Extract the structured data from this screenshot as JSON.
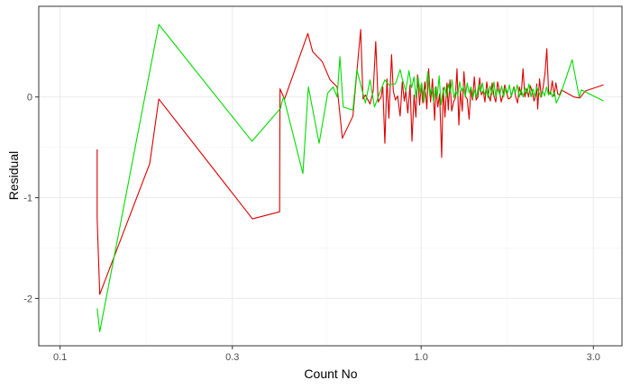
{
  "chart_data": {
    "type": "line",
    "title": "",
    "xlabel": "Count No",
    "ylabel": "Residual",
    "x_scale": "log10",
    "xlim": [
      0.0873,
      3.6
    ],
    "ylim": [
      -2.47,
      0.9
    ],
    "x_ticks": [
      {
        "value": 0.1,
        "label": "0.1"
      },
      {
        "value": 0.3,
        "label": "0.3"
      },
      {
        "value": 1.0,
        "label": "1.0"
      },
      {
        "value": 3.0,
        "label": "3.0"
      }
    ],
    "y_ticks": [
      {
        "value": -2,
        "label": "-2"
      },
      {
        "value": -1,
        "label": "-1"
      },
      {
        "value": 0,
        "label": "0"
      }
    ],
    "grid": true,
    "series": [
      {
        "name": "red",
        "color": "#dd0000",
        "points": [
          [
            0.1267,
            -0.52
          ],
          [
            0.1267,
            -1.21
          ],
          [
            0.1288,
            -1.96
          ],
          [
            0.1772,
            -0.66
          ],
          [
            0.1877,
            -0.02
          ],
          [
            0.3411,
            -1.21
          ],
          [
            0.4056,
            -1.14
          ],
          [
            0.4066,
            0.08
          ],
          [
            0.4185,
            -0.02
          ],
          [
            0.4856,
            0.63
          ],
          [
            0.5007,
            0.45
          ],
          [
            0.5324,
            0.35
          ],
          [
            0.5595,
            0.17
          ],
          [
            0.5852,
            0.1
          ],
          [
            0.6051,
            -0.41
          ],
          [
            0.6473,
            -0.19
          ],
          [
            0.6801,
            0.67
          ],
          [
            0.6904,
            -0.02
          ],
          [
            0.7009,
            0.02
          ],
          [
            0.722,
            -0.07
          ],
          [
            0.7368,
            0.06
          ],
          [
            0.7487,
            0.55
          ],
          [
            0.7603,
            -0.05
          ],
          [
            0.7747,
            0.0
          ],
          [
            0.7832,
            0.1
          ],
          [
            0.7935,
            -0.46
          ],
          [
            0.8042,
            0.18
          ],
          [
            0.8141,
            -0.21
          ],
          [
            0.8282,
            0.42
          ],
          [
            0.8373,
            0.06
          ],
          [
            0.8487,
            -0.03
          ],
          [
            0.8607,
            0.01
          ],
          [
            0.8747,
            -0.19
          ],
          [
            0.8867,
            0.15
          ],
          [
            0.8984,
            -0.04
          ],
          [
            0.9067,
            0.06
          ],
          [
            0.9184,
            -0.16
          ],
          [
            0.932,
            0.12
          ],
          [
            0.9434,
            -0.44
          ],
          [
            0.9561,
            0.02
          ],
          [
            0.9673,
            -0.2
          ],
          [
            0.977,
            0.22
          ],
          [
            0.9905,
            -0.08
          ],
          [
            1.0,
            0.12
          ],
          [
            1.011,
            -0.06
          ],
          [
            1.024,
            0.15
          ],
          [
            1.037,
            -0.12
          ],
          [
            1.049,
            0.28
          ],
          [
            1.062,
            -0.05
          ],
          [
            1.075,
            0.18
          ],
          [
            1.09,
            -0.23
          ],
          [
            1.1,
            0.1
          ],
          [
            1.112,
            -0.1
          ],
          [
            1.125,
            0.03
          ],
          [
            1.14,
            -0.6
          ],
          [
            1.151,
            0.09
          ],
          [
            1.164,
            -0.2
          ],
          [
            1.179,
            0.14
          ],
          [
            1.189,
            -0.13
          ],
          [
            1.202,
            0.17
          ],
          [
            1.215,
            -0.14
          ],
          [
            1.23,
            -0.05
          ],
          [
            1.244,
            -0.01
          ],
          [
            1.257,
            0.28
          ],
          [
            1.272,
            -0.28
          ],
          [
            1.285,
            0.06
          ],
          [
            1.3,
            -0.14
          ],
          [
            1.314,
            0.25
          ],
          [
            1.329,
            0.0
          ],
          [
            1.342,
            -0.02
          ],
          [
            1.358,
            -0.22
          ],
          [
            1.373,
            0.07
          ],
          [
            1.388,
            -0.03
          ],
          [
            1.404,
            0.2
          ],
          [
            1.42,
            -0.03
          ],
          [
            1.436,
            0.0
          ],
          [
            1.452,
            0.19
          ],
          [
            1.469,
            0.02
          ],
          [
            1.486,
            0.06
          ],
          [
            1.502,
            -0.05
          ],
          [
            1.52,
            0.15
          ],
          [
            1.537,
            0.02
          ],
          [
            1.555,
            -0.04
          ],
          [
            1.573,
            0.14
          ],
          [
            1.591,
            0.01
          ],
          [
            1.61,
            -0.05
          ],
          [
            1.628,
            0.15
          ],
          [
            1.647,
            0.07
          ],
          [
            1.666,
            -0.05
          ],
          [
            1.686,
            0.02
          ],
          [
            1.705,
            0.12
          ],
          [
            1.725,
            0.04
          ],
          [
            1.745,
            -0.02
          ],
          [
            1.765,
            -0.01
          ],
          [
            1.786,
            0.04
          ],
          [
            1.807,
            0.1
          ],
          [
            1.828,
            0.0
          ],
          [
            1.85,
            -0.06
          ],
          [
            1.871,
            0.1
          ],
          [
            1.893,
            0.02
          ],
          [
            1.915,
            0.28
          ],
          [
            1.938,
            0.0
          ],
          [
            1.961,
            0.08
          ],
          [
            1.984,
            0.0
          ],
          [
            2.007,
            0.11
          ],
          [
            2.03,
            0.05
          ],
          [
            2.055,
            -0.04
          ],
          [
            2.079,
            0.02
          ],
          [
            2.09,
            0.13
          ],
          [
            2.103,
            -0.12
          ],
          [
            2.128,
            0.18
          ],
          [
            2.153,
            0.0
          ],
          [
            2.178,
            0.1
          ],
          [
            2.204,
            0.24
          ],
          [
            2.229,
            0.48
          ],
          [
            2.255,
            0.04
          ],
          [
            2.281,
            0.03
          ],
          [
            2.308,
            0.16
          ],
          [
            2.335,
            0.01
          ],
          [
            2.362,
            0.14
          ],
          [
            2.39,
            0.03
          ],
          [
            2.418,
            0.02
          ],
          [
            2.446,
            0.07
          ],
          [
            2.65,
            0.0
          ],
          [
            2.75,
            -0.01
          ],
          [
            2.85,
            0.06
          ],
          [
            3.2,
            0.12
          ]
        ]
      },
      {
        "name": "green",
        "color": "#00dd00",
        "points": [
          [
            0.1267,
            -2.1
          ],
          [
            0.1288,
            -2.33
          ],
          [
            0.1877,
            0.72
          ],
          [
            0.3401,
            -0.44
          ],
          [
            0.4085,
            -0.11
          ],
          [
            0.4108,
            -0.06
          ],
          [
            0.4161,
            0.0
          ],
          [
            0.4705,
            -0.76
          ],
          [
            0.4872,
            0.1
          ],
          [
            0.5218,
            -0.46
          ],
          [
            0.5513,
            0.04
          ],
          [
            0.5707,
            0.1
          ],
          [
            0.5852,
            0.0
          ],
          [
            0.5958,
            0.4
          ],
          [
            0.6085,
            -0.1
          ],
          [
            0.6473,
            -0.13
          ],
          [
            0.664,
            0.27
          ],
          [
            0.7009,
            -0.06
          ],
          [
            0.722,
            0.17
          ],
          [
            0.7427,
            -0.1
          ],
          [
            0.7678,
            0.04
          ],
          [
            0.7935,
            0.17
          ],
          [
            0.814,
            0.12
          ],
          [
            0.8487,
            0.13
          ],
          [
            0.8747,
            0.27
          ],
          [
            0.8867,
            0.18
          ],
          [
            0.9067,
            0.06
          ],
          [
            0.9255,
            0.26
          ],
          [
            0.9411,
            0.09
          ],
          [
            0.9561,
            0.2
          ],
          [
            0.9673,
            -0.01
          ],
          [
            0.9811,
            0.2
          ],
          [
            0.9943,
            0.03
          ],
          [
            1.004,
            0.14
          ],
          [
            1.017,
            -0.05
          ],
          [
            1.03,
            0.08
          ],
          [
            1.044,
            0.25
          ],
          [
            1.057,
            0.01
          ],
          [
            1.069,
            0.09
          ],
          [
            1.083,
            -0.05
          ],
          [
            1.095,
            0.1
          ],
          [
            1.108,
            0.0
          ],
          [
            1.122,
            0.21
          ],
          [
            1.135,
            -0.08
          ],
          [
            1.148,
            0.04
          ],
          [
            1.162,
            0.1
          ],
          [
            1.176,
            0.0
          ],
          [
            1.19,
            0.13
          ],
          [
            1.204,
            0.04
          ],
          [
            1.218,
            0.17
          ],
          [
            1.232,
            -0.01
          ],
          [
            1.248,
            0.06
          ],
          [
            1.263,
            0.01
          ],
          [
            1.278,
            0.15
          ],
          [
            1.294,
            0.06
          ],
          [
            1.309,
            0.1
          ],
          [
            1.325,
            0.0
          ],
          [
            1.342,
            0.14
          ],
          [
            1.358,
            0.04
          ],
          [
            1.374,
            0.1
          ],
          [
            1.391,
            -0.01
          ],
          [
            1.408,
            0.07
          ],
          [
            1.425,
            0.0
          ],
          [
            1.443,
            0.12
          ],
          [
            1.46,
            0.05
          ],
          [
            1.478,
            0.14
          ],
          [
            1.496,
            0.02
          ],
          [
            1.515,
            0.08
          ],
          [
            1.533,
            -0.01
          ],
          [
            1.552,
            0.11
          ],
          [
            1.571,
            0.02
          ],
          [
            1.591,
            0.15
          ],
          [
            1.61,
            0.0
          ],
          [
            1.63,
            0.08
          ],
          [
            1.651,
            0.02
          ],
          [
            1.671,
            0.11
          ],
          [
            1.692,
            0.0
          ],
          [
            1.713,
            0.09
          ],
          [
            1.735,
            0.04
          ],
          [
            1.756,
            0.12
          ],
          [
            1.778,
            0.0
          ],
          [
            1.801,
            0.09
          ],
          [
            1.823,
            0.04
          ],
          [
            1.846,
            0.12
          ],
          [
            1.87,
            0.0
          ],
          [
            1.893,
            0.07
          ],
          [
            1.917,
            0.0
          ],
          [
            1.941,
            0.09
          ],
          [
            1.965,
            0.04
          ],
          [
            1.99,
            0.13
          ],
          [
            2.015,
            0.0
          ],
          [
            2.04,
            0.08
          ],
          [
            2.065,
            0.0
          ],
          [
            2.091,
            0.1
          ],
          [
            2.117,
            0.05
          ],
          [
            2.144,
            0.0
          ],
          [
            2.171,
            0.06
          ],
          [
            2.198,
            0.01
          ],
          [
            2.225,
            0.1
          ],
          [
            2.253,
            0.02
          ],
          [
            2.281,
            0.06
          ],
          [
            2.31,
            0.0
          ],
          [
            2.339,
            0.05
          ],
          [
            2.368,
            -0.06
          ],
          [
            2.44,
            0.04
          ],
          [
            2.62,
            0.37
          ],
          [
            2.74,
            0.0
          ],
          [
            2.78,
            0.07
          ],
          [
            3.2,
            -0.04
          ]
        ]
      }
    ]
  }
}
